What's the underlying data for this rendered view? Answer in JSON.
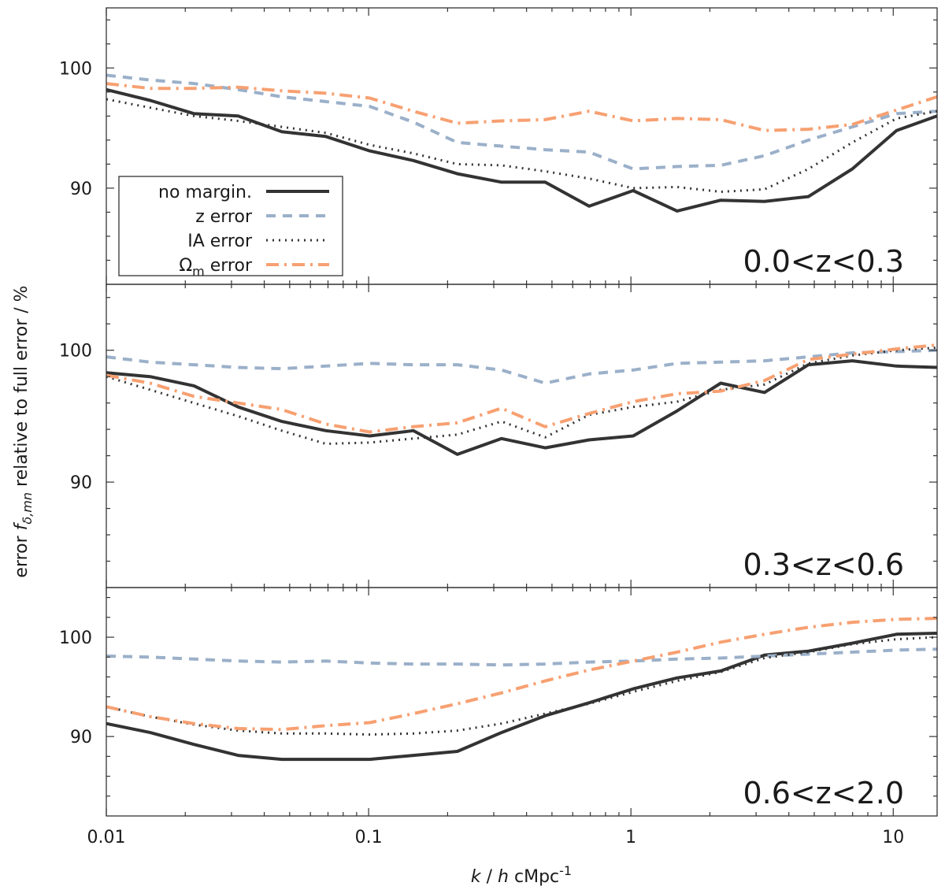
{
  "chart_data": {
    "type": "line",
    "x_scale": "log",
    "xlim": [
      0.01,
      14.7
    ],
    "xlabel_parts": {
      "k": "k",
      "sep1": " / ",
      "h": "h",
      "unit": " cMpc",
      "exp": "-1"
    },
    "ylabel_parts": {
      "pre": "error ",
      "f": "f",
      "sub": "δ,mn",
      "post": " relative to full error / %"
    },
    "x_ticks": [
      {
        "value": 0.01,
        "label": "0.01"
      },
      {
        "value": 0.1,
        "label": "0.1"
      },
      {
        "value": 1,
        "label": "1"
      },
      {
        "value": 10,
        "label": "10"
      }
    ],
    "series_styles": [
      {
        "name": "no margin.",
        "color": "#333333",
        "dash": "",
        "width": 4
      },
      {
        "name": "z error",
        "color": "#9bb0c9",
        "dash": "12,9",
        "width": 4
      },
      {
        "name": "IA error",
        "color": "#333333",
        "dash": "2,6",
        "width": 3
      },
      {
        "name": "Ωm error",
        "color": "#f7a071",
        "dash": "16,7,3,7",
        "width": 4
      }
    ],
    "legend": {
      "position": "lower-left of top panel",
      "entries": [
        {
          "label": "no margin."
        },
        {
          "label": "z error"
        },
        {
          "label": "IA error"
        },
        {
          "label_main": "Ω",
          "label_sub": "m",
          "label_rest": " error"
        }
      ]
    },
    "x": [
      0.01,
      0.0147,
      0.0216,
      0.0318,
      0.0467,
      0.0687,
      0.101,
      0.148,
      0.218,
      0.321,
      0.471,
      0.693,
      1.02,
      1.5,
      2.2,
      3.23,
      4.75,
      6.98,
      10.3,
      14.7
    ],
    "panels": [
      {
        "label": "0.0<z<0.3",
        "ylim": [
          82,
          105
        ],
        "y_ticks": [
          {
            "value": 90,
            "label": "90"
          },
          {
            "value": 100,
            "label": "100"
          }
        ],
        "series": [
          {
            "name": "no margin.",
            "values": [
              98.2,
              97.3,
              96.2,
              96.0,
              94.7,
              94.3,
              93.1,
              92.3,
              91.2,
              90.5,
              90.5,
              88.5,
              89.8,
              88.1,
              89.0,
              88.9,
              89.3,
              91.6,
              94.8,
              96.0
            ]
          },
          {
            "name": "z error",
            "values": [
              99.4,
              99.0,
              98.7,
              98.2,
              97.6,
              97.2,
              96.8,
              95.5,
              93.8,
              93.5,
              93.2,
              93.0,
              91.6,
              91.8,
              91.9,
              92.7,
              94.0,
              95.1,
              96.2,
              96.4
            ]
          },
          {
            "name": "IA error",
            "values": [
              97.4,
              96.7,
              96.0,
              95.6,
              95.1,
              94.6,
              93.6,
              92.9,
              92.0,
              91.9,
              91.4,
              90.8,
              90.0,
              90.1,
              89.7,
              89.9,
              91.6,
              93.8,
              95.8,
              96.4
            ]
          },
          {
            "name": "Ωm error",
            "values": [
              98.7,
              98.3,
              98.3,
              98.4,
              98.1,
              97.9,
              97.5,
              96.4,
              95.4,
              95.6,
              95.7,
              96.4,
              95.6,
              95.8,
              95.7,
              94.8,
              94.9,
              95.3,
              96.5,
              97.6
            ]
          }
        ]
      },
      {
        "label": "0.3<z<0.6",
        "ylim": [
          82,
          105
        ],
        "y_ticks": [
          {
            "value": 90,
            "label": "90"
          },
          {
            "value": 100,
            "label": "100"
          }
        ],
        "series": [
          {
            "name": "no margin.",
            "values": [
              98.3,
              98.0,
              97.3,
              95.7,
              94.6,
              93.9,
              93.5,
              93.9,
              92.1,
              93.3,
              92.6,
              93.2,
              93.5,
              95.4,
              97.5,
              96.8,
              98.9,
              99.2,
              98.8,
              98.7
            ]
          },
          {
            "name": "z error",
            "values": [
              99.5,
              99.1,
              98.9,
              98.7,
              98.6,
              98.8,
              99.0,
              98.9,
              98.9,
              98.5,
              97.5,
              98.2,
              98.5,
              99.0,
              99.1,
              99.2,
              99.5,
              99.8,
              99.9,
              100.0
            ]
          },
          {
            "name": "IA error",
            "values": [
              98.0,
              97.0,
              96.0,
              95.0,
              93.9,
              92.9,
              93.0,
              93.3,
              93.6,
              94.6,
              93.4,
              95.1,
              95.7,
              96.1,
              97.0,
              97.4,
              99.0,
              99.6,
              100.0,
              100.2
            ]
          },
          {
            "name": "Ωm error",
            "values": [
              98.1,
              97.5,
              96.5,
              96.0,
              95.5,
              94.4,
              93.8,
              94.2,
              94.5,
              95.6,
              94.2,
              95.2,
              96.1,
              96.7,
              96.9,
              97.7,
              99.3,
              99.7,
              100.1,
              100.4
            ]
          }
        ]
      },
      {
        "label": "0.6<z<2.0",
        "ylim": [
          82,
          105
        ],
        "y_ticks": [
          {
            "value": 90,
            "label": "90"
          },
          {
            "value": 100,
            "label": "100"
          }
        ],
        "series": [
          {
            "name": "no margin.",
            "values": [
              91.3,
              90.4,
              89.2,
              88.1,
              87.7,
              87.7,
              87.7,
              88.1,
              88.5,
              90.4,
              92.1,
              93.4,
              94.8,
              95.9,
              96.6,
              98.2,
              98.6,
              99.4,
              100.3,
              100.4
            ]
          },
          {
            "name": "z error",
            "values": [
              98.1,
              98.0,
              97.8,
              97.6,
              97.5,
              97.6,
              97.4,
              97.3,
              97.3,
              97.2,
              97.3,
              97.5,
              97.6,
              97.8,
              97.9,
              98.1,
              98.3,
              98.5,
              98.7,
              98.8
            ]
          },
          {
            "name": "IA error",
            "values": [
              93.0,
              92.0,
              91.2,
              90.6,
              90.3,
              90.3,
              90.2,
              90.3,
              90.6,
              91.3,
              92.3,
              93.3,
              94.5,
              95.6,
              96.5,
              97.9,
              98.5,
              99.3,
              99.8,
              100.0
            ]
          },
          {
            "name": "Ωm error",
            "values": [
              93.0,
              92.0,
              91.3,
              90.8,
              90.7,
              91.1,
              91.4,
              92.3,
              93.3,
              94.4,
              95.6,
              96.7,
              97.6,
              98.5,
              99.5,
              100.3,
              101.0,
              101.5,
              101.8,
              101.9
            ]
          }
        ]
      }
    ]
  }
}
